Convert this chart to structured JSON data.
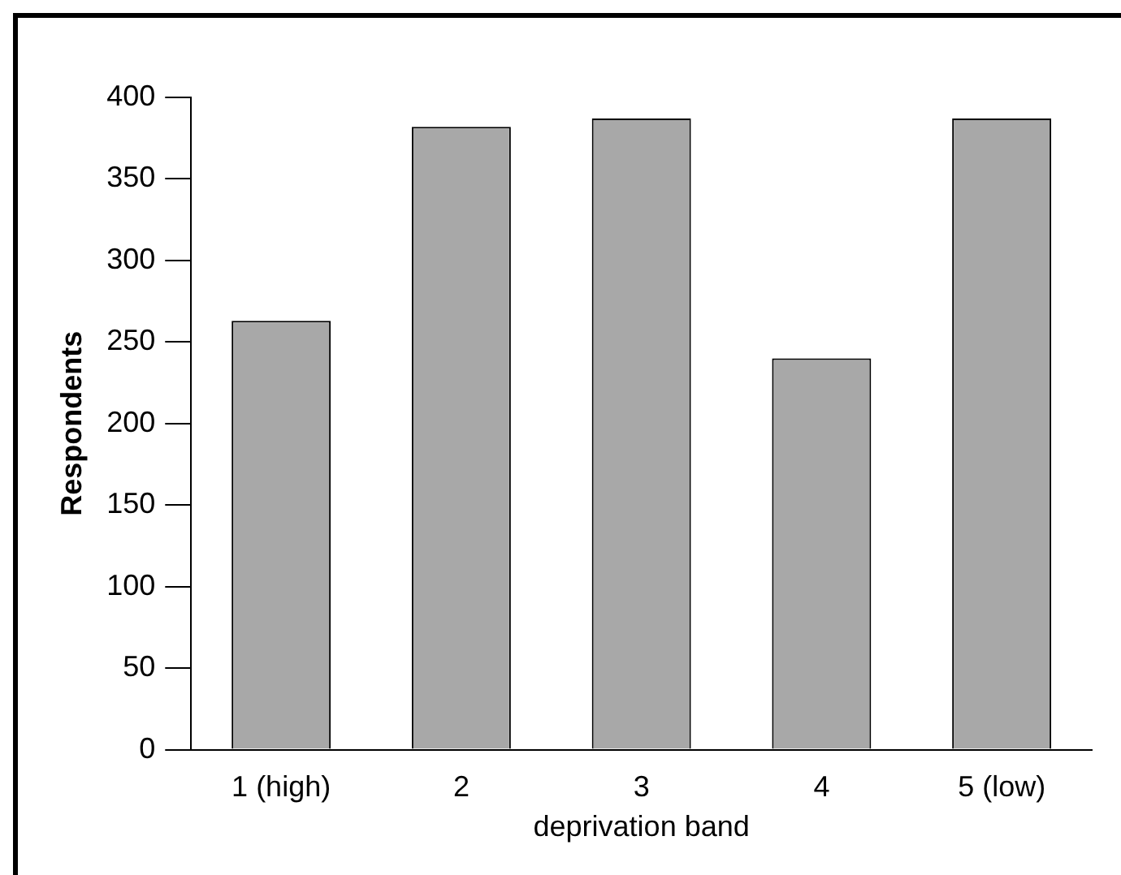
{
  "chart_data": {
    "type": "bar",
    "xlabel": "deprivation band",
    "ylabel": "Respondents",
    "categories": [
      "1 (high)",
      "2",
      "3",
      "4",
      "5 (low)"
    ],
    "values": [
      263,
      382,
      387,
      240,
      387
    ],
    "color": "#a8a8a8",
    "ylim": [
      0,
      400
    ],
    "yticks": [
      0,
      50,
      100,
      150,
      200,
      250,
      300,
      350,
      400
    ],
    "grid": false,
    "legend": false
  }
}
